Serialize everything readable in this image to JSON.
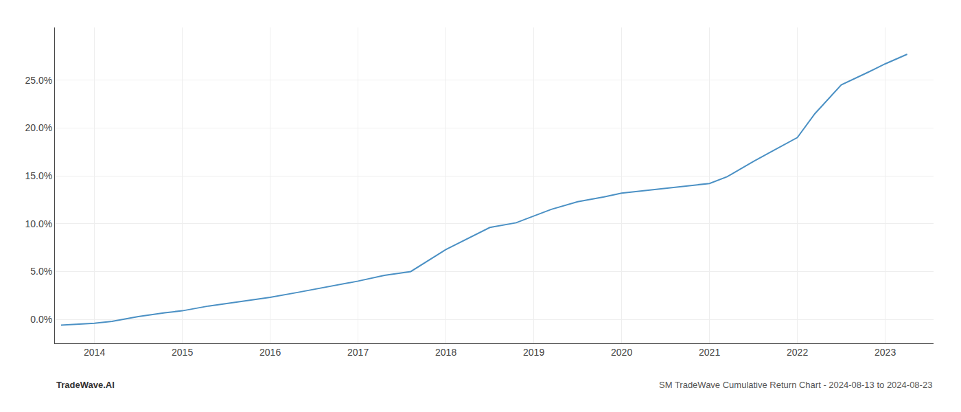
{
  "chart_data": {
    "type": "line",
    "x": [
      2013.62,
      2014.0,
      2014.2,
      2014.5,
      2014.8,
      2015.0,
      2015.3,
      2015.6,
      2016.0,
      2016.3,
      2016.6,
      2017.0,
      2017.3,
      2017.6,
      2018.0,
      2018.2,
      2018.5,
      2018.8,
      2019.0,
      2019.2,
      2019.5,
      2019.8,
      2020.0,
      2020.3,
      2020.6,
      2021.0,
      2021.2,
      2021.5,
      2021.7,
      2022.0,
      2022.2,
      2022.5,
      2022.8,
      2023.0,
      2023.25
    ],
    "values": [
      -0.006,
      -0.004,
      -0.002,
      0.003,
      0.007,
      0.009,
      0.014,
      0.018,
      0.023,
      0.028,
      0.033,
      0.04,
      0.046,
      0.05,
      0.073,
      0.082,
      0.096,
      0.101,
      0.108,
      0.115,
      0.123,
      0.128,
      0.132,
      0.135,
      0.138,
      0.142,
      0.149,
      0.165,
      0.175,
      0.19,
      0.215,
      0.245,
      0.258,
      0.267,
      0.277
    ],
    "color": "#4a90c4",
    "xlim": [
      2013.55,
      2023.55
    ],
    "xticks": [
      2014,
      2015,
      2016,
      2017,
      2018,
      2019,
      2020,
      2021,
      2022,
      2023
    ],
    "ylim": [
      -0.025,
      0.305
    ],
    "yticks": [
      {
        "value": 0.0,
        "label": "0.0%"
      },
      {
        "value": 0.05,
        "label": "5.0%"
      },
      {
        "value": 0.1,
        "label": "10.0%"
      },
      {
        "value": 0.15,
        "label": "15.0%"
      },
      {
        "value": 0.2,
        "label": "20.0%"
      },
      {
        "value": 0.25,
        "label": "25.0%"
      }
    ],
    "grid": true,
    "annotations": [
      "TradeWave.AI",
      "SM TradeWave Cumulative Return Chart - 2024-08-13 to 2024-08-23"
    ]
  }
}
